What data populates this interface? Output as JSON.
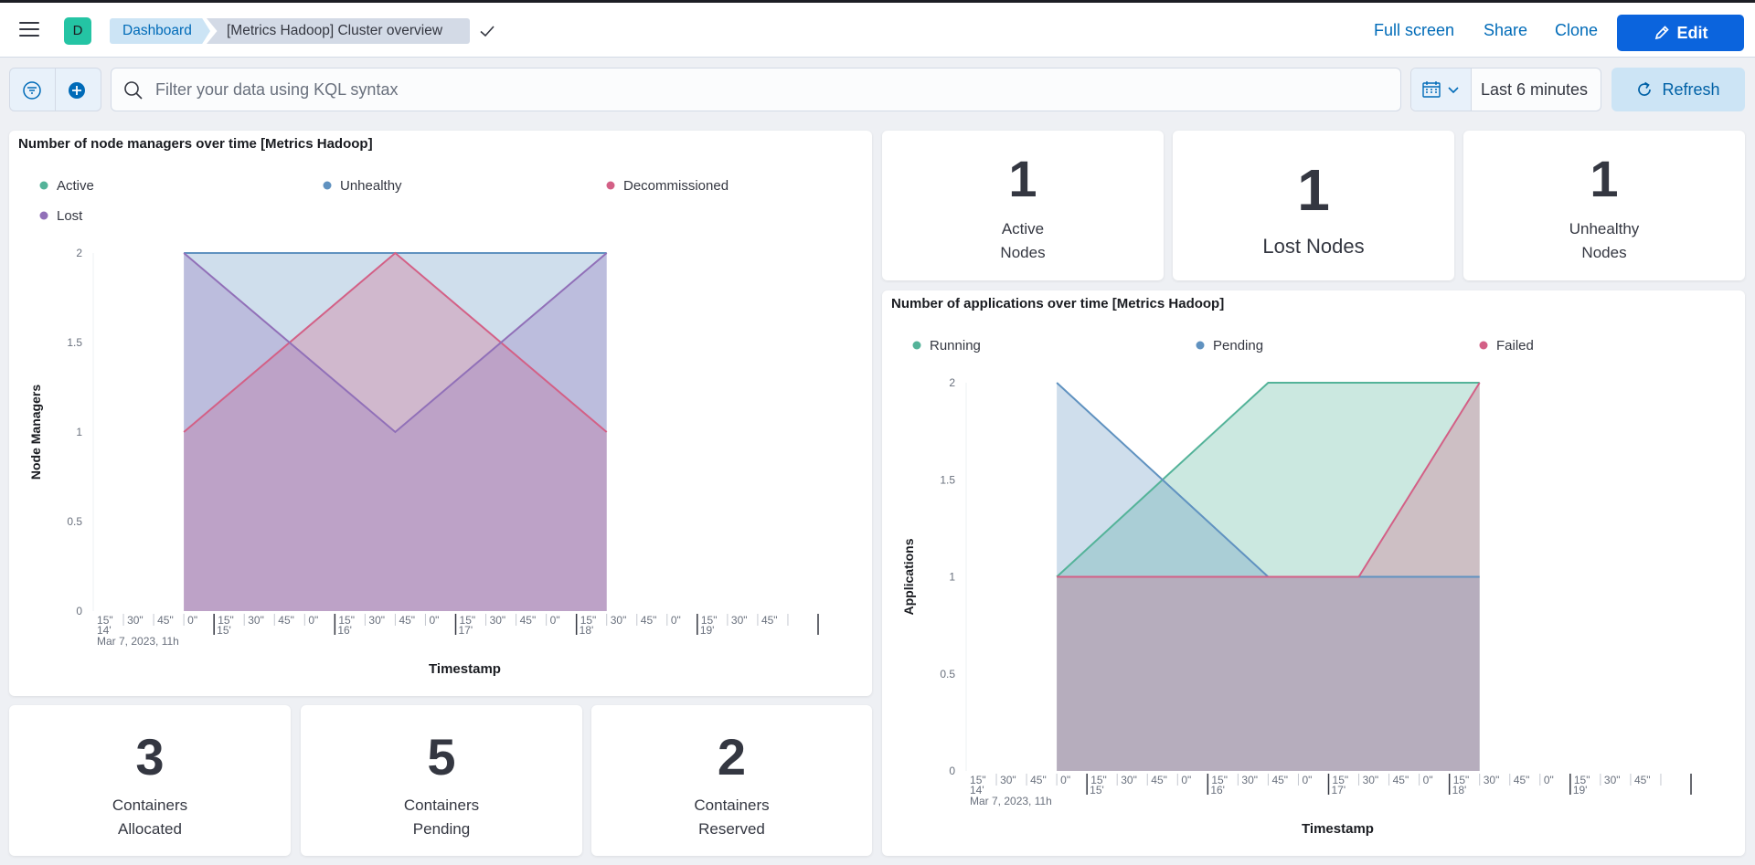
{
  "header": {
    "space_initial": "D",
    "breadcrumb_root": "Dashboard",
    "breadcrumb_current": "[Metrics Hadoop] Cluster overview",
    "fullscreen_label": "Full screen",
    "share_label": "Share",
    "clone_label": "Clone",
    "edit_label": "Edit"
  },
  "query_bar": {
    "placeholder": "Filter your data using KQL syntax",
    "date_range": "Last 6 minutes",
    "refresh_label": "Refresh"
  },
  "panels": {
    "node_managers": {
      "title": "Number of node managers over time [Metrics Hadoop]",
      "legend": [
        "Active",
        "Unhealthy",
        "Decommissioned",
        "Lost"
      ]
    },
    "applications": {
      "title": "Number of applications over time [Metrics Hadoop]",
      "legend": [
        "Running",
        "Pending",
        "Failed"
      ]
    },
    "metrics": [
      {
        "value": "1",
        "line1": "Active",
        "line2": "Nodes"
      },
      {
        "value": "1",
        "line1": "Lost Nodes",
        "line2": ""
      },
      {
        "value": "1",
        "line1": "Unhealthy",
        "line2": "Nodes"
      },
      {
        "value": "3",
        "line1": "Containers",
        "line2": "Allocated"
      },
      {
        "value": "5",
        "line1": "Containers",
        "line2": "Pending"
      },
      {
        "value": "2",
        "line1": "Containers",
        "line2": "Reserved"
      }
    ]
  },
  "chart_data": [
    {
      "type": "area",
      "title": "Number of node managers over time [Metrics Hadoop]",
      "xlabel": "Timestamp",
      "ylabel": "Node Managers",
      "ylim": [
        0,
        2
      ],
      "yticks": [
        "0",
        "0.5",
        "1",
        "1.5",
        "2"
      ],
      "x_tick_labels": [
        "15\"",
        "30\"",
        "45\"",
        "0\"",
        "15\"",
        "30\"",
        "45\"",
        "0\"",
        "15\"",
        "30\"",
        "45\"",
        "0\"",
        "15\"",
        "30\"",
        "45\"",
        "0\"",
        "15\"",
        "30\"",
        "45\"",
        "0\"",
        "15\"",
        "30\"",
        "45\""
      ],
      "x_minute_labels": [
        "14'",
        "15'",
        "16'",
        "17'",
        "18'",
        "19'"
      ],
      "x_date_label": "Mar 7, 2023, 11h",
      "x": [
        "11:14:45",
        "11:16:30",
        "11:18:15"
      ],
      "series": [
        {
          "name": "Unhealthy",
          "color": "#6092c0",
          "values": [
            2,
            2,
            2
          ]
        },
        {
          "name": "Decommissioned",
          "color": "#d36086",
          "values": [
            1,
            2,
            1
          ]
        },
        {
          "name": "Lost",
          "color": "#9170b8",
          "values": [
            2,
            1,
            2
          ]
        }
      ]
    },
    {
      "type": "area",
      "title": "Number of applications over time [Metrics Hadoop]",
      "xlabel": "Timestamp",
      "ylabel": "Applications",
      "ylim": [
        0,
        2
      ],
      "yticks": [
        "0",
        "0.5",
        "1",
        "1.5",
        "2"
      ],
      "x_tick_labels": [
        "15\"",
        "30\"",
        "45\"",
        "0\"",
        "15\"",
        "30\"",
        "45\"",
        "0\"",
        "15\"",
        "30\"",
        "45\"",
        "0\"",
        "15\"",
        "30\"",
        "45\"",
        "0\"",
        "15\"",
        "30\"",
        "45\"",
        "0\"",
        "15\"",
        "30\"",
        "45\""
      ],
      "x_minute_labels": [
        "14'",
        "15'",
        "16'",
        "17'",
        "18'",
        "19'"
      ],
      "x_date_label": "Mar 7, 2023, 11h",
      "x": [
        "11:14:45",
        "11:16:30",
        "11:17:15",
        "11:18:15"
      ],
      "series": [
        {
          "name": "Running",
          "color": "#54b399",
          "values": [
            1,
            2,
            2,
            2
          ]
        },
        {
          "name": "Pending",
          "color": "#6092c0",
          "values": [
            2,
            1,
            1,
            1
          ]
        },
        {
          "name": "Failed",
          "color": "#d36086",
          "values": [
            1,
            1,
            1,
            2
          ]
        }
      ]
    }
  ]
}
